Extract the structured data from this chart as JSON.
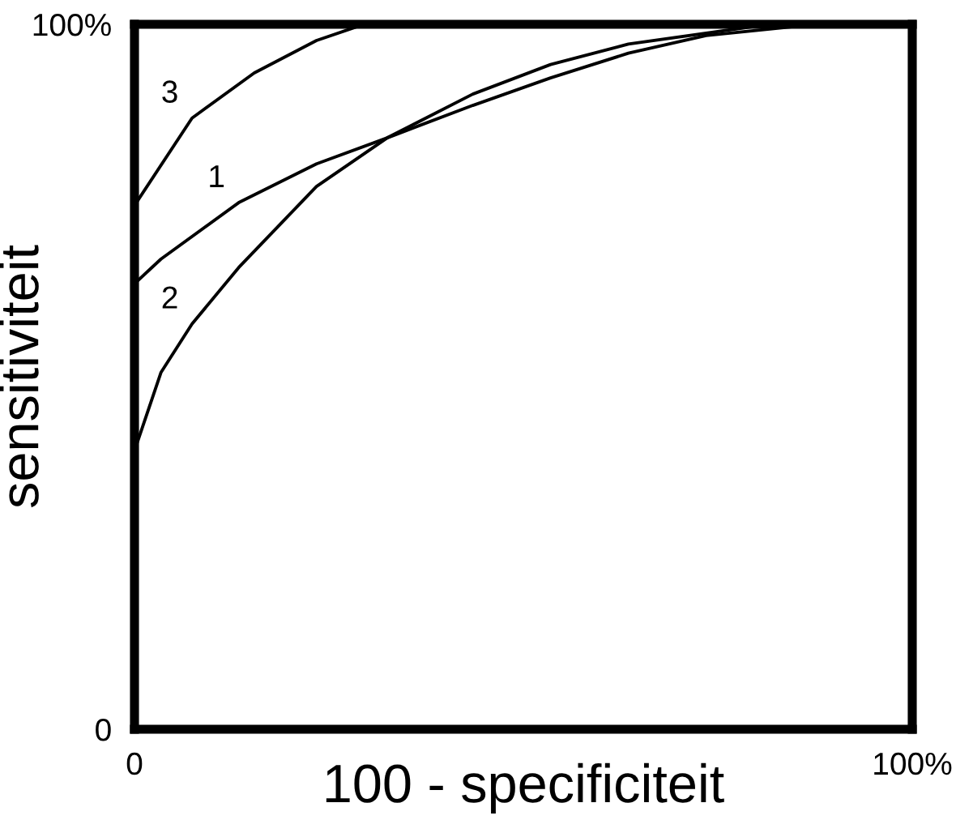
{
  "chart_data": {
    "type": "line",
    "xlabel": "100 - specificiteit",
    "ylabel": "sensitiviteit",
    "xlim": [
      0,
      100
    ],
    "ylim": [
      0,
      100
    ],
    "xticks": [
      {
        "value": 0,
        "label": "0"
      },
      {
        "value": 100,
        "label": "100%"
      }
    ],
    "yticks": [
      {
        "value": 0,
        "label": "0"
      },
      {
        "value": 100,
        "label": "100%"
      }
    ],
    "legend": false,
    "marker": "none",
    "line_style": "solid",
    "series": [
      {
        "name": "1",
        "color": "#000000",
        "x": [
          0,
          3.4,
          13.4,
          23.4,
          32.5,
          43.5,
          53.5,
          63.5,
          73.5,
          87.6
        ],
        "values": [
          63.2,
          66.7,
          74.7,
          80.2,
          83.9,
          88.5,
          92.4,
          95.9,
          98.4,
          100
        ]
      },
      {
        "name": "2",
        "color": "#000000",
        "x": [
          0,
          3.4,
          7.4,
          13.4,
          23.4,
          32.5,
          43.5,
          53.5,
          63.5,
          81.6
        ],
        "values": [
          39.5,
          50.6,
          57.5,
          65.5,
          77.0,
          83.9,
          90.1,
          94.3,
          97.2,
          100
        ]
      },
      {
        "name": "3",
        "color": "#000000",
        "x": [
          0,
          7.4,
          15.4,
          23.4,
          29.5
        ],
        "values": [
          74.3,
          86.7,
          93.1,
          97.7,
          100
        ]
      }
    ]
  }
}
